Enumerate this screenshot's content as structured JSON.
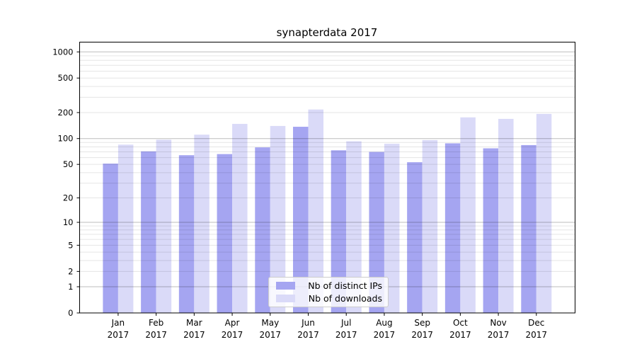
{
  "title": "synapterdata 2017",
  "chart_data": {
    "type": "bar",
    "title": "synapterdata 2017",
    "months": [
      "Jan",
      "Feb",
      "Mar",
      "Apr",
      "May",
      "Jun",
      "Jul",
      "Aug",
      "Sep",
      "Oct",
      "Nov",
      "Dec"
    ],
    "year": "2017",
    "series": [
      {
        "name": "Nb of distinct IPs",
        "color": "#a5a5f1",
        "values": [
          51,
          71,
          64,
          66,
          79,
          137,
          73,
          70,
          53,
          88,
          77,
          84
        ]
      },
      {
        "name": "Nb of downloads",
        "color": "#dadaf8",
        "values": [
          85,
          97,
          111,
          148,
          140,
          217,
          93,
          87,
          96,
          176,
          169,
          193
        ]
      }
    ],
    "yscale": "symlog (log(1+x))",
    "yticks": [
      0,
      1,
      2,
      5,
      10,
      20,
      50,
      100,
      200,
      500,
      1000
    ],
    "ylim": [
      0,
      1300
    ],
    "xlabel": "",
    "ylabel": "",
    "grid": "major and minor horizontal gridlines",
    "legend_position": "lower center",
    "colors": {
      "major_grid": "rgba(0,0,0,0.26)",
      "minor_grid": "rgba(0,0,0,0.10)",
      "spine": "#000000"
    }
  }
}
